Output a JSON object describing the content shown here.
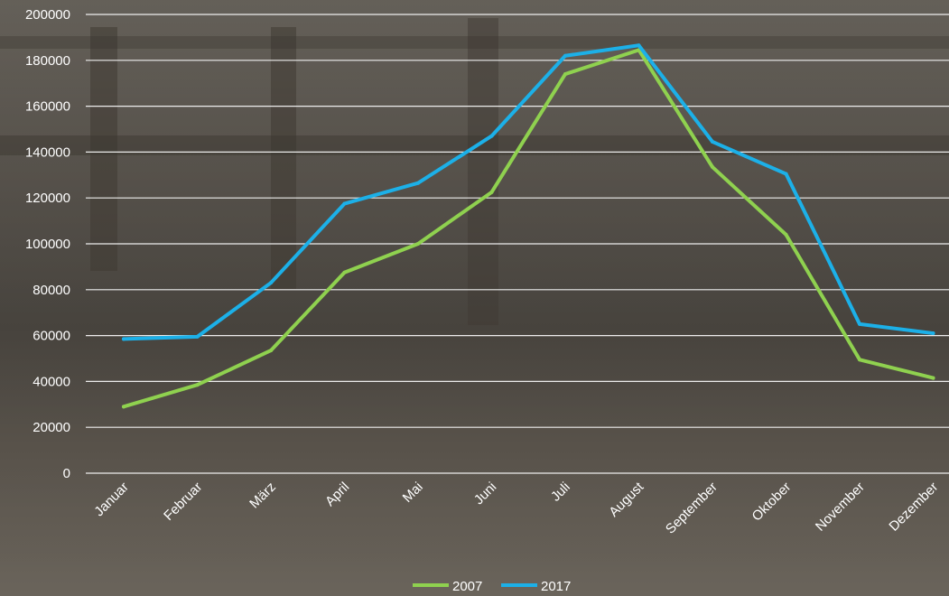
{
  "chart_data": {
    "type": "line",
    "categories": [
      "Januar",
      "Februar",
      "März",
      "April",
      "Mai",
      "Juni",
      "Juli",
      "August",
      "September",
      "Oktober",
      "November",
      "Dezember"
    ],
    "series": [
      {
        "name": "2007",
        "color": "#8fd14f",
        "values": [
          29000,
          38500,
          53500,
          87500,
          100000,
          122500,
          174000,
          184500,
          133500,
          104000,
          49500,
          41500
        ]
      },
      {
        "name": "2017",
        "color": "#1cb0e8",
        "values": [
          58500,
          59500,
          83000,
          117500,
          126500,
          147000,
          182000,
          186500,
          144500,
          130500,
          65000,
          61000
        ]
      }
    ],
    "ylim": [
      0,
      200000
    ],
    "yticks": [
      "0",
      "20000",
      "40000",
      "60000",
      "80000",
      "100000",
      "120000",
      "140000",
      "160000",
      "180000",
      "200000"
    ],
    "grid": true,
    "legend": "bottom-center",
    "title": "",
    "xlabel": "",
    "ylabel": ""
  }
}
